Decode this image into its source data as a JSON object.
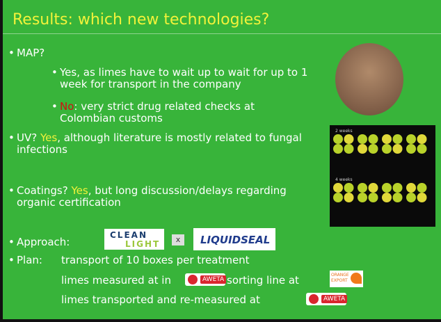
{
  "title": "Results: which new technologies?",
  "map": {
    "label": "MAP?",
    "sub": [
      {
        "text": "Yes, as limes have to wait up to wait for up to 1 week for transport in the company"
      },
      {
        "highlight": "No",
        "text": ": very strict drug related checks at Colombian customs"
      }
    ]
  },
  "uv": {
    "label": "UV? ",
    "highlight": "Yes",
    "text": ", although literature is mostly related to fungal infections"
  },
  "coatings": {
    "label": "Coatings? ",
    "highlight": "Yes",
    "text": ", but long discussion/delays regarding organic certification"
  },
  "approach": {
    "label": "Approach:",
    "logo1_top": "CLEAN",
    "logo1_bottom": "LIGHT",
    "separator": "x",
    "logo2": "LIQUIDSEAL"
  },
  "plan": {
    "label": "Plan:",
    "line1": "transport of 10 boxes per treatment",
    "line2_a": "limes measured at in ",
    "line2_b": " sorting line at ",
    "line3": "limes transported and re-measured at ",
    "aweta": "AWETA",
    "orange_top": "ORANGE",
    "orange_bottom": "EXPORT"
  },
  "photo": {
    "label_top": "2 weeks",
    "label_bottom": "4 weeks"
  }
}
